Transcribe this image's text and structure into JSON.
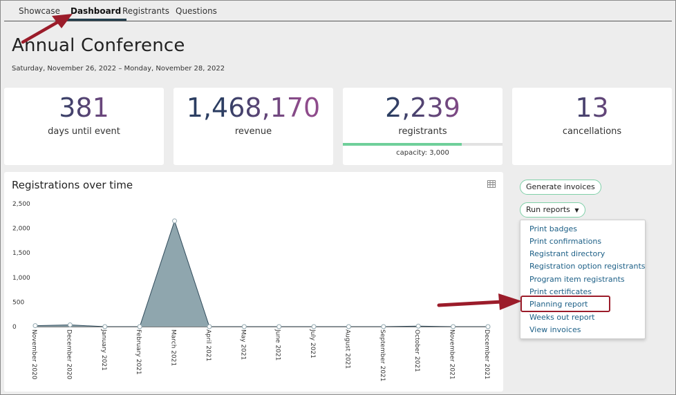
{
  "tabs": [
    "Showcase",
    "Dashboard",
    "Registrants",
    "Questions"
  ],
  "active_tab": "Dashboard",
  "page_title": "Annual Conference",
  "date_range": "Saturday, November 26, 2022 – Monday, November 28, 2022",
  "stats": [
    {
      "value": "381",
      "label": "days until event"
    },
    {
      "value": "1,468,170",
      "label": "revenue"
    },
    {
      "value": "2,239",
      "label": "registrants",
      "capacity_label": "capacity: 3,000",
      "fill_fraction": 0.746
    },
    {
      "value": "13",
      "label": "cancellations"
    }
  ],
  "colors": {
    "accent_green": "#7fd0a8",
    "link": "#1c5f86",
    "highlight": "#9b1c2a",
    "area_fill": "#8fa6ae"
  },
  "buttons": {
    "generate_invoices": "Generate invoices",
    "run_reports": "Run reports"
  },
  "report_menu": [
    "Print badges",
    "Print confirmations",
    "Registrant directory",
    "Registration option registrants",
    "Program item registrants",
    "Print certificates",
    "Planning report",
    "Weeks out report",
    "View invoices"
  ],
  "highlighted_menu_item": "Planning report",
  "chart_data": {
    "type": "area",
    "title": "Registrations over time",
    "categories": [
      "November 2020",
      "December 2020",
      "January 2021",
      "February 2021",
      "March 2021",
      "April 2021",
      "May 2021",
      "June 2021",
      "July 2021",
      "August 2021",
      "September 2021",
      "October 2021",
      "November 2021",
      "December 2021"
    ],
    "values": [
      20,
      35,
      0,
      0,
      2150,
      0,
      0,
      0,
      0,
      0,
      0,
      10,
      0,
      0
    ],
    "ylim": [
      0,
      2500
    ],
    "yticks": [
      "2,500",
      "2,000",
      "1,500",
      "1,000",
      "500",
      "0"
    ],
    "grid": false
  }
}
